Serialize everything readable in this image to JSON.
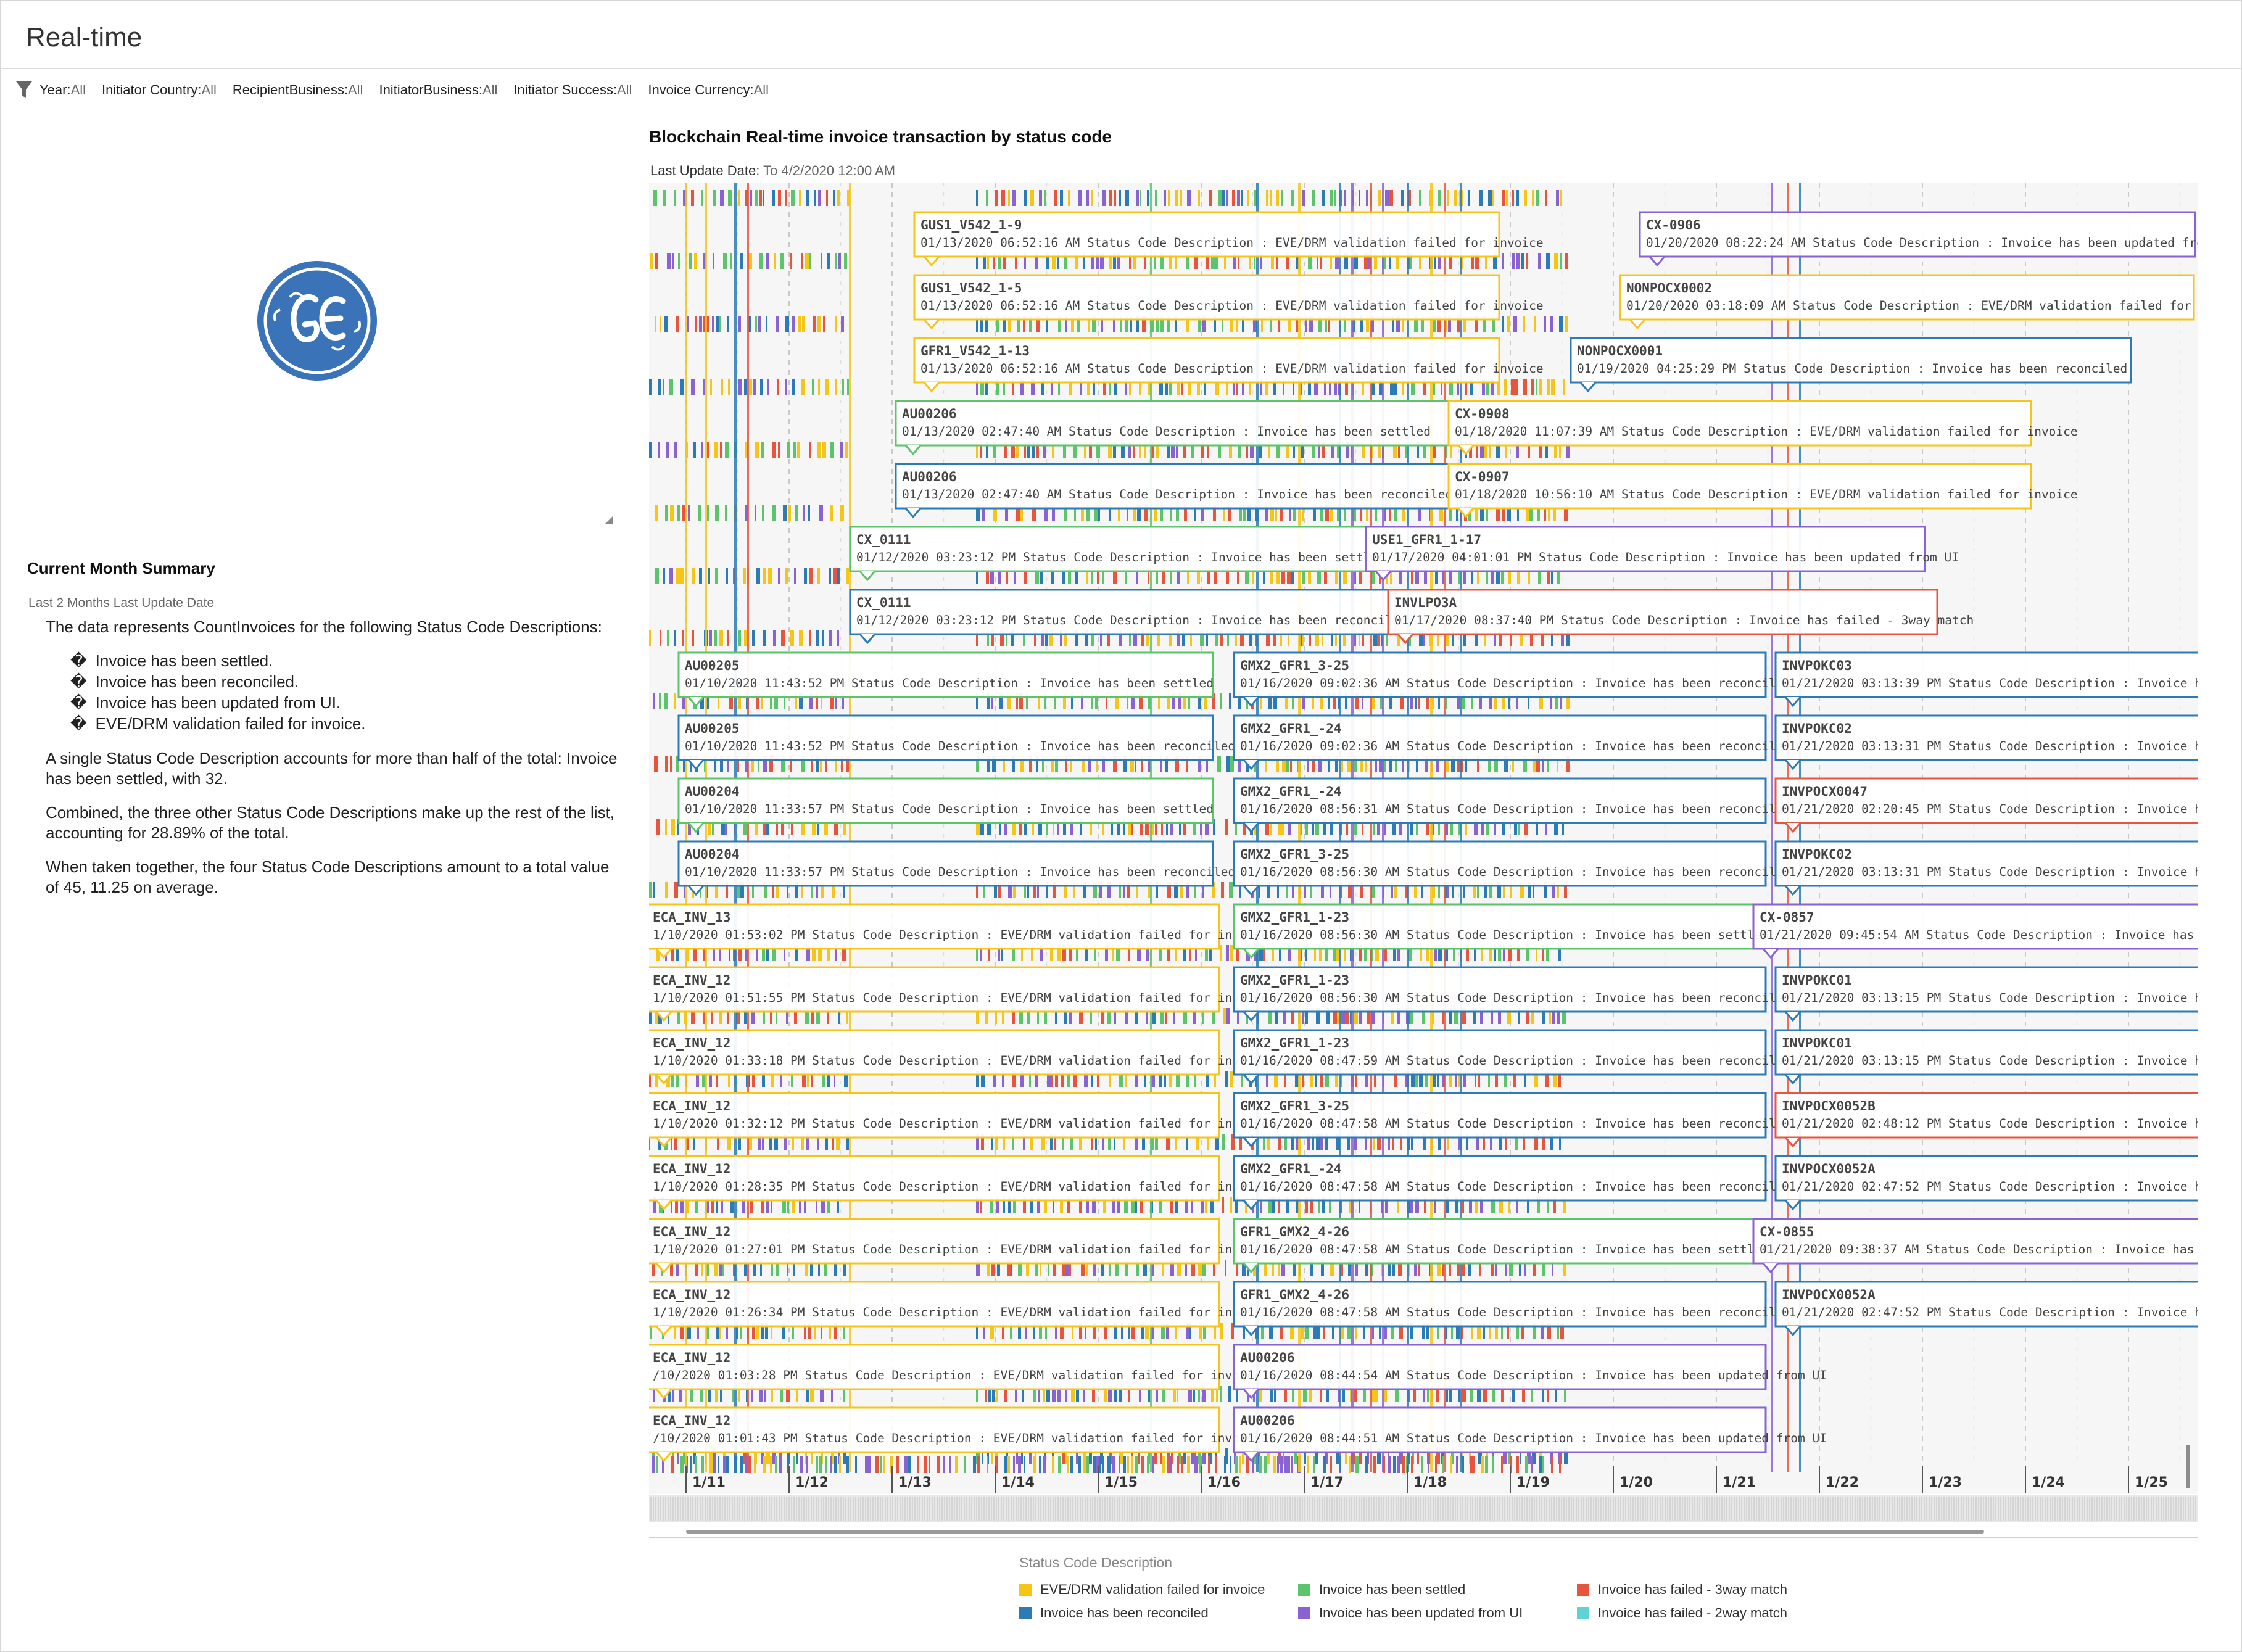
{
  "page": {
    "title": "Real-time"
  },
  "filters": [
    {
      "name": "Year:",
      "value": "All"
    },
    {
      "name": "Initiator Country:",
      "value": "All"
    },
    {
      "name": "RecipientBusiness:",
      "value": "All"
    },
    {
      "name": "InitiatorBusiness:",
      "value": "All"
    },
    {
      "name": "Initiator Success:",
      "value": "All"
    },
    {
      "name": "Invoice Currency:",
      "value": "All"
    }
  ],
  "summary": {
    "title": "Current Month Summary",
    "subtitle": "Last 2 Months Last Update Date",
    "intro": "The data represents CountInvoices for the following Status Code Descriptions:",
    "bullet_glyph": "�",
    "bullets": [
      "Invoice has been settled.",
      "Invoice has been reconciled.",
      "Invoice has been updated from UI.",
      "EVE/DRM validation failed for invoice."
    ],
    "paragraphs": [
      "A single Status Code Description accounts for more than half of the total: Invoice has been settled, with 32.",
      "Combined, the three other Status Code Descriptions make up the rest of the list, accounting for 28.89% of the total.",
      "When taken together, the four Status Code Descriptions amount to a total value of 45, 11.25 on average."
    ]
  },
  "chart_data": {
    "type": "timeline",
    "title": "Blockchain Real-time invoice transaction by status code",
    "subtitle_key": "Last Update Date:",
    "subtitle_value": "To 4/2/2020 12:00 AM",
    "x_ticks": [
      "1/11",
      "1/12",
      "1/13",
      "1/14",
      "1/15",
      "1/16",
      "1/17",
      "1/18",
      "1/19",
      "1/20",
      "1/21",
      "1/22",
      "1/23",
      "1/24",
      "1/25"
    ],
    "legend_title": "Status Code Description",
    "legend_placement": "bottom",
    "categories": [
      {
        "name": "EVE/DRM validation failed for invoice",
        "color": "#f5c518"
      },
      {
        "name": "Invoice has been reconciled",
        "color": "#2c7bb6"
      },
      {
        "name": "Invoice has been settled",
        "color": "#5cc46a"
      },
      {
        "name": "Invoice has been updated from UI",
        "color": "#8a63d2"
      },
      {
        "name": "Invoice has failed - 3way match",
        "color": "#e8553e"
      },
      {
        "name": "Invoice has failed - 2way match",
        "color": "#5fd3d3"
      }
    ],
    "label_middle": " Status Code Description : ",
    "events": [
      {
        "id": "GUS1_V542_1-9",
        "ts": "01/13/2020 06:52:16 AM",
        "status": "EVE/DRM validation failed for invoice",
        "cat": 0,
        "row": 0,
        "col": 0
      },
      {
        "id": "GUS1_V542_1-5",
        "ts": "01/13/2020 06:52:16 AM",
        "status": "EVE/DRM validation failed for invoice",
        "cat": 0,
        "row": 1,
        "col": 0
      },
      {
        "id": "GFR1_V542_1-13",
        "ts": "01/13/2020 06:52:16 AM",
        "status": "EVE/DRM validation failed for invoice",
        "cat": 0,
        "row": 2,
        "col": 0
      },
      {
        "id": "AU00206",
        "ts": "01/13/2020 02:47:40 AM",
        "status": "Invoice has been settled",
        "cat": 2,
        "row": 3,
        "col": 1
      },
      {
        "id": "AU00206",
        "ts": "01/13/2020 02:47:40 AM",
        "status": "Invoice has been reconciled",
        "cat": 1,
        "row": 4,
        "col": 1
      },
      {
        "id": "CX_0111",
        "ts": "01/12/2020 03:23:12 PM",
        "status": "Invoice has been settled",
        "cat": 2,
        "row": 5,
        "col": 2
      },
      {
        "id": "CX_0111",
        "ts": "01/12/2020 03:23:12 PM",
        "status": "Invoice has been reconciled",
        "cat": 1,
        "row": 6,
        "col": 2
      },
      {
        "id": "AU00205",
        "ts": "01/10/2020 11:43:52 PM",
        "status": "Invoice has been settled",
        "cat": 2,
        "row": 7,
        "col": 3
      },
      {
        "id": "AU00205",
        "ts": "01/10/2020 11:43:52 PM",
        "status": "Invoice has been reconciled",
        "cat": 1,
        "row": 8,
        "col": 3
      },
      {
        "id": "AU00204",
        "ts": "01/10/2020 11:33:57 PM",
        "status": "Invoice has been settled",
        "cat": 2,
        "row": 9,
        "col": 3
      },
      {
        "id": "AU00204",
        "ts": "01/10/2020 11:33:57 PM",
        "status": "Invoice has been reconciled",
        "cat": 1,
        "row": 10,
        "col": 3
      },
      {
        "id": "ECA_INV_13",
        "ts": "1/10/2020 01:53:02 PM",
        "status": "EVE/DRM validation failed for invoice",
        "cat": 0,
        "row": 11,
        "col": 4
      },
      {
        "id": "ECA_INV_12",
        "ts": "1/10/2020 01:51:55 PM",
        "status": "EVE/DRM validation failed for invoice",
        "cat": 0,
        "row": 12,
        "col": 4
      },
      {
        "id": "ECA_INV_12",
        "ts": "1/10/2020 01:33:18 PM",
        "status": "EVE/DRM validation failed for invoice",
        "cat": 0,
        "row": 13,
        "col": 4
      },
      {
        "id": "ECA_INV_12",
        "ts": "1/10/2020 01:32:12 PM",
        "status": "EVE/DRM validation failed for invoice",
        "cat": 0,
        "row": 14,
        "col": 4
      },
      {
        "id": "ECA_INV_12",
        "ts": "1/10/2020 01:28:35 PM",
        "status": "EVE/DRM validation failed for invoice",
        "cat": 0,
        "row": 15,
        "col": 4
      },
      {
        "id": "ECA_INV_12",
        "ts": "1/10/2020 01:27:01 PM",
        "status": "EVE/DRM validation failed for invoice",
        "cat": 0,
        "row": 16,
        "col": 4
      },
      {
        "id": "ECA_INV_12",
        "ts": "1/10/2020 01:26:34 PM",
        "status": "EVE/DRM validation failed for invoice",
        "cat": 0,
        "row": 17,
        "col": 4
      },
      {
        "id": "ECA_INV_12",
        "ts": "/10/2020 01:03:28 PM",
        "status": "EVE/DRM validation failed for invoice",
        "cat": 0,
        "row": 18,
        "col": 4
      },
      {
        "id": "ECA_INV_12",
        "ts": "/10/2020 01:01:43 PM",
        "status": "EVE/DRM validation failed for invoice",
        "cat": 0,
        "row": 19,
        "col": 4
      },
      {
        "id": "CX-0906",
        "ts": "01/20/2020 08:22:24 AM",
        "status": "Invoice has been updated from U",
        "cat": 3,
        "row": 0,
        "col": 5
      },
      {
        "id": "NONPOCX0002",
        "ts": "01/20/2020 03:18:09 AM",
        "status": "EVE/DRM validation failed for invoice",
        "cat": 0,
        "row": 1,
        "col": 6
      },
      {
        "id": "NONPOCX0001",
        "ts": "01/19/2020 04:25:29 PM",
        "status": "Invoice has been reconciled",
        "cat": 1,
        "row": 2,
        "col": 7
      },
      {
        "id": "CX-0908",
        "ts": "01/18/2020 11:07:39 AM",
        "status": "EVE/DRM validation failed for invoice",
        "cat": 0,
        "row": 3,
        "col": 8
      },
      {
        "id": "CX-0907",
        "ts": "01/18/2020 10:56:10 AM",
        "status": "EVE/DRM validation failed for invoice",
        "cat": 0,
        "row": 4,
        "col": 8
      },
      {
        "id": "USE1_GFR1_1-17",
        "ts": "01/17/2020 04:01:01 PM",
        "status": "Invoice has been updated from UI",
        "cat": 3,
        "row": 5,
        "col": 9
      },
      {
        "id": "INVLPO3A",
        "ts": "01/17/2020 08:37:40 PM",
        "status": "Invoice has failed - 3way match",
        "cat": 4,
        "row": 6,
        "col": 10
      },
      {
        "id": "GMX2_GFR1_3-25",
        "ts": "01/16/2020 09:02:36 AM",
        "status": "Invoice has been reconciled",
        "cat": 1,
        "row": 7,
        "col": 11
      },
      {
        "id": "GMX2_GFR1_-24",
        "ts": "01/16/2020 09:02:36 AM",
        "status": "Invoice has been reconciled",
        "cat": 1,
        "row": 8,
        "col": 11
      },
      {
        "id": "GMX2_GFR1_-24",
        "ts": "01/16/2020 08:56:31 AM",
        "status": "Invoice has been reconciled",
        "cat": 1,
        "row": 9,
        "col": 11
      },
      {
        "id": "GMX2_GFR1_3-25",
        "ts": "01/16/2020 08:56:30 AM",
        "status": "Invoice has been reconciled",
        "cat": 1,
        "row": 10,
        "col": 11
      },
      {
        "id": "GMX2_GFR1_1-23",
        "ts": "01/16/2020 08:56:30 AM",
        "status": "Invoice has been settled",
        "cat": 2,
        "row": 11,
        "col": 11
      },
      {
        "id": "GMX2_GFR1_1-23",
        "ts": "01/16/2020 08:56:30 AM",
        "status": "Invoice has been reconciled",
        "cat": 1,
        "row": 12,
        "col": 11
      },
      {
        "id": "GMX2_GFR1_1-23",
        "ts": "01/16/2020 08:47:59 AM",
        "status": "Invoice has been reconciled",
        "cat": 1,
        "row": 13,
        "col": 11
      },
      {
        "id": "GMX2_GFR1_3-25",
        "ts": "01/16/2020 08:47:58 AM",
        "status": "Invoice has been reconciled",
        "cat": 1,
        "row": 14,
        "col": 11
      },
      {
        "id": "GMX2_GFR1_-24",
        "ts": "01/16/2020 08:47:58 AM",
        "status": "Invoice has been reconciled",
        "cat": 1,
        "row": 15,
        "col": 11
      },
      {
        "id": "GFR1_GMX2_4-26",
        "ts": "01/16/2020 08:47:58 AM",
        "status": "Invoice has been settled",
        "cat": 2,
        "row": 16,
        "col": 11
      },
      {
        "id": "GFR1_GMX2_4-26",
        "ts": "01/16/2020 08:47:58 AM",
        "status": "Invoice has been reconciled",
        "cat": 1,
        "row": 17,
        "col": 11
      },
      {
        "id": "AU00206",
        "ts": "01/16/2020 08:44:54 AM",
        "status": "Invoice has been updated from UI",
        "cat": 3,
        "row": 18,
        "col": 11
      },
      {
        "id": "AU00206",
        "ts": "01/16/2020 08:44:51 AM",
        "status": "Invoice has been updated from UI",
        "cat": 3,
        "row": 19,
        "col": 11
      },
      {
        "id": "INVPOKC03",
        "ts": "01/21/2020 03:13:39 PM",
        "status": "Invoice has b",
        "cat": 1,
        "row": 7,
        "col": 12
      },
      {
        "id": "INVPOKC02",
        "ts": "01/21/2020 03:13:31 PM",
        "status": "Invoice has b",
        "cat": 1,
        "row": 8,
        "col": 12
      },
      {
        "id": "INVPOCX0047",
        "ts": "01/21/2020 02:20:45 PM",
        "status": "Invoice has fa",
        "cat": 4,
        "row": 9,
        "col": 12
      },
      {
        "id": "INVPOKC02",
        "ts": "01/21/2020 03:13:31 PM",
        "status": "Invoice has b",
        "cat": 1,
        "row": 10,
        "col": 12
      },
      {
        "id": "CX-0857",
        "ts": "01/21/2020 09:45:54 AM",
        "status": "Invoice has bee",
        "cat": 3,
        "row": 11,
        "col": 13
      },
      {
        "id": "INVPOKC01",
        "ts": "01/21/2020 03:13:15 PM",
        "status": "Invoice has b",
        "cat": 1,
        "row": 12,
        "col": 12
      },
      {
        "id": "INVPOKC01",
        "ts": "01/21/2020 03:13:15 PM",
        "status": "Invoice has b",
        "cat": 1,
        "row": 13,
        "col": 12
      },
      {
        "id": "INVPOCX0052B",
        "ts": "01/21/2020 02:48:12 PM",
        "status": "Invoice has fa",
        "cat": 4,
        "row": 14,
        "col": 12
      },
      {
        "id": "INVPOCX0052A",
        "ts": "01/21/2020 02:47:52 PM",
        "status": "Invoice has b",
        "cat": 1,
        "row": 15,
        "col": 12
      },
      {
        "id": "CX-0855",
        "ts": "01/21/2020 09:38:37 AM",
        "status": "Invoice has bee",
        "cat": 3,
        "row": 16,
        "col": 13
      },
      {
        "id": "INVPOCX0052A",
        "ts": "01/21/2020 02:47:52 PM",
        "status": "Invoice has b",
        "cat": 1,
        "row": 17,
        "col": 12
      }
    ]
  }
}
